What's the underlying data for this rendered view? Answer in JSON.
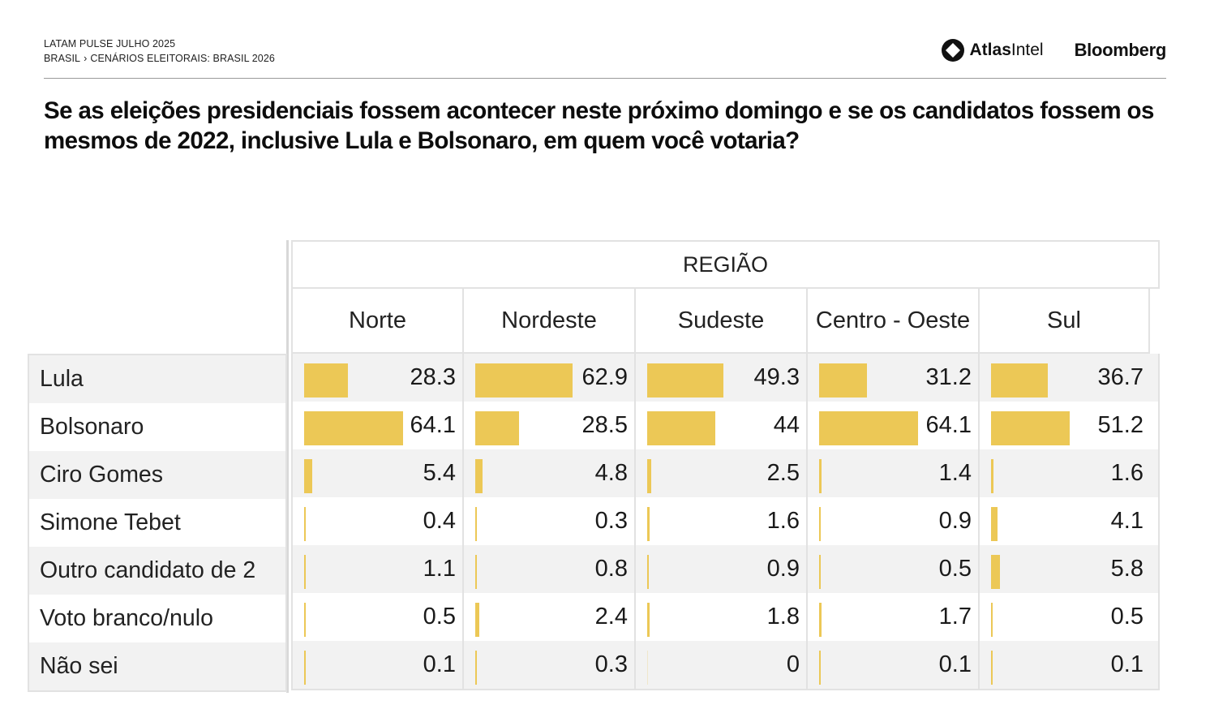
{
  "header": {
    "line1": "LATAM PULSE JULHO 2025",
    "breadcrumb_country": "BRASIL",
    "breadcrumb_sep": "›",
    "breadcrumb_topic": "CENÁRIOS ELEITORAIS: BRASIL 2026",
    "brand_atlas_bold": "Atlas",
    "brand_atlas_light": "Intel",
    "brand_bloomberg": "Bloomberg"
  },
  "title": "Se as eleições presidenciais fossem acontecer neste próximo domingo e se os candidatos fossem os mesmos de 2022, inclusive Lula e Bolsonaro, em quem você votaria?",
  "colors": {
    "bar": "#ecc856",
    "alt_row": "#f2f2f2",
    "border": "#e2e2e2"
  },
  "chart_data": {
    "type": "table",
    "title": "Se as eleições presidenciais fossem acontecer neste próximo domingo e se os candidatos fossem os mesmos de 2022, inclusive Lula e Bolsonaro, em quem você votaria?",
    "group_header": "REGIÃO",
    "columns": [
      "Norte",
      "Nordeste",
      "Sudeste",
      "Centro - Oeste",
      "Sul"
    ],
    "rows": [
      {
        "label": "Lula",
        "values": [
          28.3,
          62.9,
          49.3,
          31.2,
          36.7
        ]
      },
      {
        "label": "Bolsonaro",
        "values": [
          64.1,
          28.5,
          44,
          64.1,
          51.2
        ]
      },
      {
        "label": "Ciro Gomes",
        "values": [
          5.4,
          4.8,
          2.5,
          1.4,
          1.6
        ]
      },
      {
        "label": "Simone Tebet",
        "values": [
          0.4,
          0.3,
          1.6,
          0.9,
          4.1
        ]
      },
      {
        "label": "Outro candidato de 2",
        "values": [
          1.1,
          0.8,
          0.9,
          0.5,
          5.8
        ]
      },
      {
        "label": "Voto branco/nulo",
        "values": [
          0.5,
          2.4,
          1.8,
          1.7,
          0.5
        ]
      },
      {
        "label": "Não sei",
        "values": [
          0.1,
          0.3,
          0,
          0.1,
          0.1
        ]
      }
    ]
  }
}
